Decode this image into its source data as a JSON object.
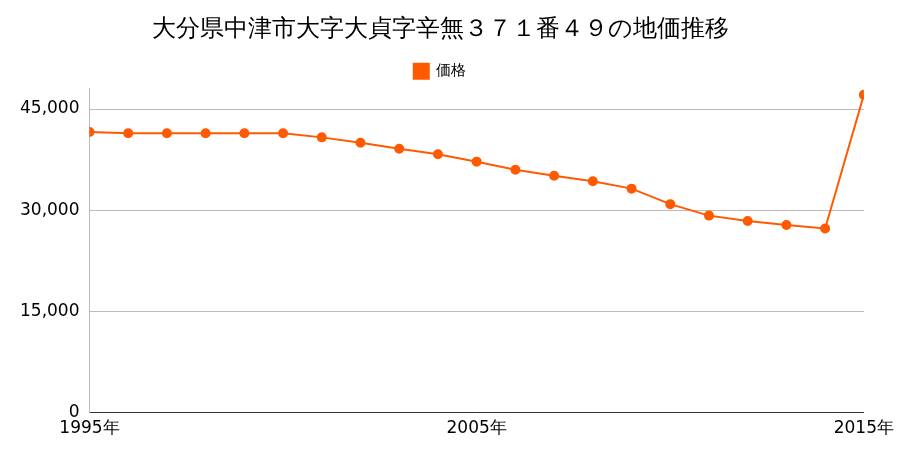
{
  "chart_data": {
    "type": "line",
    "title": "大分県中津市大字大貞字辛無３７１番４９の地価推移",
    "categories": [
      "1995年",
      null,
      null,
      null,
      null,
      null,
      null,
      null,
      null,
      null,
      "2005年",
      null,
      null,
      null,
      null,
      null,
      null,
      null,
      null,
      null,
      "2015年"
    ],
    "series": [
      {
        "name": "価格",
        "color": "#ff5a00",
        "marker": "circle",
        "values": [
          41600,
          41400,
          41400,
          41400,
          41400,
          41400,
          40800,
          40000,
          39100,
          38300,
          37200,
          36000,
          35100,
          34300,
          33200,
          30900,
          29200,
          28400,
          27800,
          27300,
          47100
        ]
      }
    ],
    "ylim": [
      0,
      48000
    ],
    "yticks": [
      0,
      {
        "value": 15000,
        "label": "15,000"
      },
      {
        "value": 30000,
        "label": "30,000"
      },
      {
        "value": 45000,
        "label": "45,000"
      }
    ],
    "grid": true,
    "legend": "top"
  }
}
